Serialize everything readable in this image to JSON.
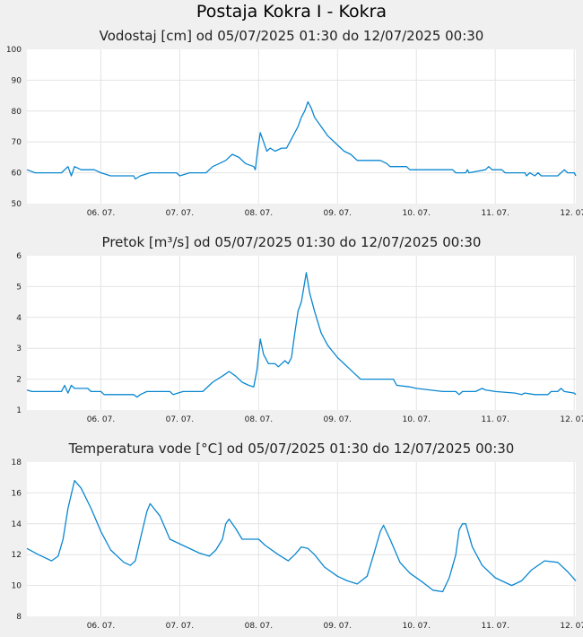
{
  "title": "Postaja Kokra I - Kokra",
  "colors": {
    "line": "#0a87d0",
    "grid": "#e4e4e4",
    "plot_bg": "#ffffff",
    "page_bg": "#f0f0f0"
  },
  "chart_data": [
    {
      "type": "line",
      "title": "Vodostaj [cm] od 05/07/2025 01:30 do 12/07/2025 00:30",
      "x_range": [
        "2025-07-05 01:30",
        "2025-07-12 00:30"
      ],
      "x_ticks": [
        "06. 07.",
        "07. 07.",
        "08. 07.",
        "09. 07.",
        "10. 07.",
        "11. 07.",
        "12. 07."
      ],
      "ylim": [
        50,
        100
      ],
      "y_ticks": [
        "50",
        "60",
        "70",
        "80",
        "90",
        "100"
      ],
      "grid": true,
      "series": [
        {
          "points": [
            [
              "2025-07-05 01:30",
              61
            ],
            [
              "2025-07-05 04:00",
              60
            ],
            [
              "2025-07-05 12:00",
              60
            ],
            [
              "2025-07-05 14:00",
              62
            ],
            [
              "2025-07-05 15:00",
              59
            ],
            [
              "2025-07-05 16:00",
              62
            ],
            [
              "2025-07-05 18:00",
              61
            ],
            [
              "2025-07-05 22:00",
              61
            ],
            [
              "2025-07-06 00:00",
              60
            ],
            [
              "2025-07-06 03:00",
              59
            ],
            [
              "2025-07-06 10:00",
              59
            ],
            [
              "2025-07-06 10:30",
              58
            ],
            [
              "2025-07-06 12:00",
              59
            ],
            [
              "2025-07-06 15:00",
              60
            ],
            [
              "2025-07-06 23:00",
              60
            ],
            [
              "2025-07-07 00:00",
              59
            ],
            [
              "2025-07-07 03:00",
              60
            ],
            [
              "2025-07-07 08:00",
              60
            ],
            [
              "2025-07-07 10:00",
              62
            ],
            [
              "2025-07-07 12:00",
              63
            ],
            [
              "2025-07-07 14:00",
              64
            ],
            [
              "2025-07-07 16:00",
              66
            ],
            [
              "2025-07-07 18:00",
              65
            ],
            [
              "2025-07-07 20:00",
              63
            ],
            [
              "2025-07-07 22:30",
              62
            ],
            [
              "2025-07-07 23:00",
              61
            ],
            [
              "2025-07-07 23:40",
              67
            ],
            [
              "2025-07-08 00:30",
              73
            ],
            [
              "2025-07-08 01:30",
              70
            ],
            [
              "2025-07-08 02:30",
              67
            ],
            [
              "2025-07-08 03:30",
              68
            ],
            [
              "2025-07-08 05:00",
              67
            ],
            [
              "2025-07-08 07:00",
              68
            ],
            [
              "2025-07-08 08:30",
              68
            ],
            [
              "2025-07-08 10:00",
              71
            ],
            [
              "2025-07-08 12:00",
              75
            ],
            [
              "2025-07-08 13:00",
              78
            ],
            [
              "2025-07-08 14:00",
              80
            ],
            [
              "2025-07-08 15:00",
              83
            ],
            [
              "2025-07-08 16:00",
              81
            ],
            [
              "2025-07-08 17:00",
              78
            ],
            [
              "2025-07-08 19:00",
              75
            ],
            [
              "2025-07-08 21:00",
              72
            ],
            [
              "2025-07-09 00:00",
              69
            ],
            [
              "2025-07-09 02:00",
              67
            ],
            [
              "2025-07-09 04:00",
              66
            ],
            [
              "2025-07-09 05:00",
              65
            ],
            [
              "2025-07-09 06:00",
              64
            ],
            [
              "2025-07-09 13:00",
              64
            ],
            [
              "2025-07-09 15:00",
              63
            ],
            [
              "2025-07-09 16:00",
              62
            ],
            [
              "2025-07-09 21:00",
              62
            ],
            [
              "2025-07-09 22:00",
              61
            ],
            [
              "2025-07-10 11:00",
              61
            ],
            [
              "2025-07-10 12:00",
              60
            ],
            [
              "2025-07-10 15:00",
              60
            ],
            [
              "2025-07-10 15:30",
              61
            ],
            [
              "2025-07-10 16:00",
              60
            ],
            [
              "2025-07-10 21:00",
              61
            ],
            [
              "2025-07-10 22:00",
              62
            ],
            [
              "2025-07-10 23:00",
              61
            ],
            [
              "2025-07-11 02:00",
              61
            ],
            [
              "2025-07-11 03:00",
              60
            ],
            [
              "2025-07-11 09:00",
              60
            ],
            [
              "2025-07-11 09:30",
              59
            ],
            [
              "2025-07-11 10:30",
              60
            ],
            [
              "2025-07-11 12:00",
              59
            ],
            [
              "2025-07-11 13:00",
              60
            ],
            [
              "2025-07-11 14:00",
              59
            ],
            [
              "2025-07-11 19:00",
              59
            ],
            [
              "2025-07-11 20:00",
              60
            ],
            [
              "2025-07-11 21:00",
              61
            ],
            [
              "2025-07-11 22:00",
              60
            ],
            [
              "2025-07-12 00:00",
              60
            ],
            [
              "2025-07-12 00:30",
              59
            ]
          ]
        }
      ]
    },
    {
      "type": "line",
      "title": "Pretok [m³/s] od 05/07/2025 01:30 do 12/07/2025 00:30",
      "x_range": [
        "2025-07-05 01:30",
        "2025-07-12 00:30"
      ],
      "x_ticks": [
        "06. 07.",
        "07. 07.",
        "08. 07.",
        "09. 07.",
        "10. 07.",
        "11. 07.",
        "12. 07."
      ],
      "ylim": [
        1,
        6
      ],
      "y_ticks": [
        "1",
        "2",
        "3",
        "4",
        "5",
        "6"
      ],
      "grid": true,
      "series": [
        {
          "points": [
            [
              "2025-07-05 01:30",
              1.65
            ],
            [
              "2025-07-05 03:00",
              1.6
            ],
            [
              "2025-07-05 12:00",
              1.6
            ],
            [
              "2025-07-05 13:00",
              1.8
            ],
            [
              "2025-07-05 14:00",
              1.55
            ],
            [
              "2025-07-05 15:00",
              1.8
            ],
            [
              "2025-07-05 16:00",
              1.7
            ],
            [
              "2025-07-05 20:00",
              1.7
            ],
            [
              "2025-07-05 21:00",
              1.6
            ],
            [
              "2025-07-06 00:00",
              1.6
            ],
            [
              "2025-07-06 01:00",
              1.5
            ],
            [
              "2025-07-06 10:00",
              1.5
            ],
            [
              "2025-07-06 11:00",
              1.42
            ],
            [
              "2025-07-06 12:00",
              1.5
            ],
            [
              "2025-07-06 14:00",
              1.6
            ],
            [
              "2025-07-06 21:00",
              1.6
            ],
            [
              "2025-07-06 22:00",
              1.5
            ],
            [
              "2025-07-07 01:00",
              1.6
            ],
            [
              "2025-07-07 07:00",
              1.6
            ],
            [
              "2025-07-07 10:00",
              1.9
            ],
            [
              "2025-07-07 13:00",
              2.1
            ],
            [
              "2025-07-07 15:00",
              2.25
            ],
            [
              "2025-07-07 17:00",
              2.1
            ],
            [
              "2025-07-07 19:00",
              1.9
            ],
            [
              "2025-07-07 21:00",
              1.8
            ],
            [
              "2025-07-07 22:30",
              1.75
            ],
            [
              "2025-07-07 23:30",
              2.3
            ],
            [
              "2025-07-08 00:30",
              3.3
            ],
            [
              "2025-07-08 01:30",
              2.8
            ],
            [
              "2025-07-08 03:00",
              2.5
            ],
            [
              "2025-07-08 05:00",
              2.5
            ],
            [
              "2025-07-08 06:00",
              2.4
            ],
            [
              "2025-07-08 08:00",
              2.6
            ],
            [
              "2025-07-08 09:00",
              2.5
            ],
            [
              "2025-07-08 10:00",
              2.7
            ],
            [
              "2025-07-08 11:00",
              3.5
            ],
            [
              "2025-07-08 12:00",
              4.2
            ],
            [
              "2025-07-08 13:00",
              4.5
            ],
            [
              "2025-07-08 14:30",
              5.45
            ],
            [
              "2025-07-08 15:30",
              4.8
            ],
            [
              "2025-07-08 17:00",
              4.2
            ],
            [
              "2025-07-08 19:00",
              3.5
            ],
            [
              "2025-07-08 21:00",
              3.1
            ],
            [
              "2025-07-09 00:00",
              2.7
            ],
            [
              "2025-07-09 02:00",
              2.5
            ],
            [
              "2025-07-09 04:00",
              2.3
            ],
            [
              "2025-07-09 06:00",
              2.1
            ],
            [
              "2025-07-09 07:00",
              2.0
            ],
            [
              "2025-07-09 17:00",
              2.0
            ],
            [
              "2025-07-09 18:00",
              1.8
            ],
            [
              "2025-07-09 22:00",
              1.75
            ],
            [
              "2025-07-10 00:00",
              1.7
            ],
            [
              "2025-07-10 08:00",
              1.6
            ],
            [
              "2025-07-10 12:00",
              1.6
            ],
            [
              "2025-07-10 13:00",
              1.5
            ],
            [
              "2025-07-10 14:00",
              1.6
            ],
            [
              "2025-07-10 18:00",
              1.6
            ],
            [
              "2025-07-10 20:00",
              1.7
            ],
            [
              "2025-07-10 21:00",
              1.65
            ],
            [
              "2025-07-11 00:00",
              1.6
            ],
            [
              "2025-07-11 06:00",
              1.55
            ],
            [
              "2025-07-11 08:00",
              1.5
            ],
            [
              "2025-07-11 09:00",
              1.55
            ],
            [
              "2025-07-11 12:00",
              1.5
            ],
            [
              "2025-07-11 16:00",
              1.5
            ],
            [
              "2025-07-11 17:00",
              1.6
            ],
            [
              "2025-07-11 19:00",
              1.6
            ],
            [
              "2025-07-11 20:00",
              1.7
            ],
            [
              "2025-07-11 21:00",
              1.6
            ],
            [
              "2025-07-12 00:00",
              1.55
            ],
            [
              "2025-07-12 00:30",
              1.5
            ]
          ]
        }
      ]
    },
    {
      "type": "line",
      "title": "Temperatura vode [°C] od 05/07/2025 01:30 do 12/07/2025 00:30",
      "x_range": [
        "2025-07-05 01:30",
        "2025-07-12 00:30"
      ],
      "x_ticks": [
        "06. 07.",
        "07. 07.",
        "08. 07.",
        "09. 07.",
        "10. 07.",
        "11. 07.",
        "12. 07."
      ],
      "ylim": [
        8,
        18
      ],
      "y_ticks": [
        "8",
        "10",
        "12",
        "14",
        "16",
        "18"
      ],
      "grid": true,
      "series": [
        {
          "points": [
            [
              "2025-07-05 01:30",
              12.4
            ],
            [
              "2025-07-05 05:00",
              12.0
            ],
            [
              "2025-07-05 09:00",
              11.6
            ],
            [
              "2025-07-05 11:00",
              11.9
            ],
            [
              "2025-07-05 12:30",
              13.0
            ],
            [
              "2025-07-05 14:00",
              15.0
            ],
            [
              "2025-07-05 16:00",
              16.8
            ],
            [
              "2025-07-05 18:00",
              16.3
            ],
            [
              "2025-07-05 21:00",
              15.0
            ],
            [
              "2025-07-06 00:00",
              13.5
            ],
            [
              "2025-07-06 03:00",
              12.3
            ],
            [
              "2025-07-06 07:00",
              11.5
            ],
            [
              "2025-07-06 09:00",
              11.3
            ],
            [
              "2025-07-06 10:30",
              11.6
            ],
            [
              "2025-07-06 12:00",
              13.0
            ],
            [
              "2025-07-06 14:00",
              14.8
            ],
            [
              "2025-07-06 15:00",
              15.3
            ],
            [
              "2025-07-06 18:00",
              14.5
            ],
            [
              "2025-07-06 21:00",
              13.0
            ],
            [
              "2025-07-07 02:00",
              12.5
            ],
            [
              "2025-07-07 06:00",
              12.1
            ],
            [
              "2025-07-07 09:00",
              11.9
            ],
            [
              "2025-07-07 11:00",
              12.3
            ],
            [
              "2025-07-07 13:00",
              13.0
            ],
            [
              "2025-07-07 14:00",
              14.0
            ],
            [
              "2025-07-07 15:00",
              14.3
            ],
            [
              "2025-07-07 17:00",
              13.7
            ],
            [
              "2025-07-07 19:00",
              13.0
            ],
            [
              "2025-07-08 00:00",
              13.0
            ],
            [
              "2025-07-08 02:00",
              12.6
            ],
            [
              "2025-07-08 06:00",
              12.0
            ],
            [
              "2025-07-08 09:00",
              11.6
            ],
            [
              "2025-07-08 11:00",
              12.0
            ],
            [
              "2025-07-08 13:00",
              12.5
            ],
            [
              "2025-07-08 15:00",
              12.4
            ],
            [
              "2025-07-08 17:00",
              12.0
            ],
            [
              "2025-07-08 20:00",
              11.2
            ],
            [
              "2025-07-09 00:00",
              10.6
            ],
            [
              "2025-07-09 03:00",
              10.3
            ],
            [
              "2025-07-09 06:00",
              10.1
            ],
            [
              "2025-07-09 09:00",
              10.6
            ],
            [
              "2025-07-09 11:00",
              12.0
            ],
            [
              "2025-07-09 13:00",
              13.5
            ],
            [
              "2025-07-09 14:00",
              13.9
            ],
            [
              "2025-07-09 16:00",
              13.0
            ],
            [
              "2025-07-09 19:00",
              11.5
            ],
            [
              "2025-07-09 22:00",
              10.8
            ],
            [
              "2025-07-10 02:00",
              10.2
            ],
            [
              "2025-07-10 05:00",
              9.7
            ],
            [
              "2025-07-10 08:00",
              9.6
            ],
            [
              "2025-07-10 10:00",
              10.5
            ],
            [
              "2025-07-10 12:00",
              12.0
            ],
            [
              "2025-07-10 13:00",
              13.6
            ],
            [
              "2025-07-10 14:00",
              14.0
            ],
            [
              "2025-07-10 15:00",
              14.0
            ],
            [
              "2025-07-10 17:00",
              12.5
            ],
            [
              "2025-07-10 20:00",
              11.3
            ],
            [
              "2025-07-11 00:00",
              10.5
            ],
            [
              "2025-07-11 05:00",
              10.0
            ],
            [
              "2025-07-11 08:00",
              10.3
            ],
            [
              "2025-07-11 11:00",
              11.0
            ],
            [
              "2025-07-11 15:00",
              11.6
            ],
            [
              "2025-07-11 19:00",
              11.5
            ],
            [
              "2025-07-11 22:00",
              10.9
            ],
            [
              "2025-07-12 00:30",
              10.3
            ]
          ]
        }
      ]
    }
  ]
}
